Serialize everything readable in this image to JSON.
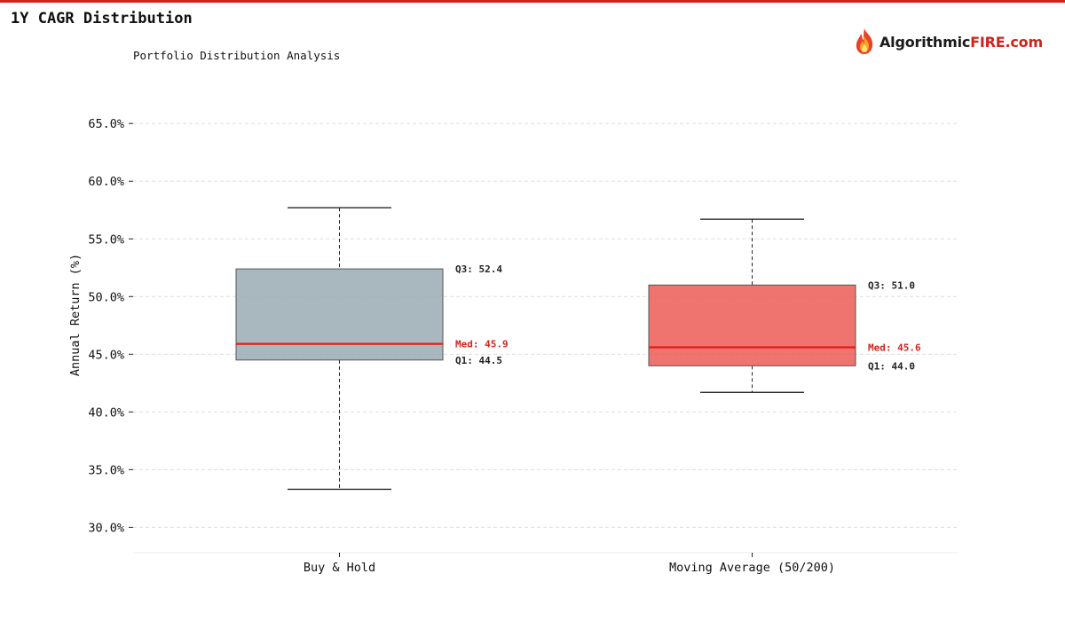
{
  "header": {
    "title": "1Y CAGR Distribution",
    "subtitle": "Portfolio Distribution Analysis"
  },
  "logo": {
    "icon": "flame-icon",
    "text_main": "Algorithmic",
    "text_accent": "FIRE.com"
  },
  "colors": {
    "accent": "#d0231c",
    "median": "#dd1f1a",
    "grid": "#dddddd",
    "whisker": "#222222"
  },
  "chart_data": {
    "type": "box",
    "title": "1Y CAGR Distribution",
    "subtitle": "Portfolio Distribution Analysis",
    "ylabel": "Annual Return (%)",
    "xlabel": "",
    "ylim": [
      27.8,
      68.4
    ],
    "yticks": [
      30,
      35,
      40,
      45,
      50,
      55,
      60,
      65
    ],
    "ytick_format": "0.0%",
    "grid": true,
    "grid_axis": "y",
    "series": [
      {
        "name": "Buy & Hold",
        "min": 33.3,
        "q1": 44.5,
        "median": 45.9,
        "q3": 52.4,
        "max": 57.7,
        "color": "#9aaab3",
        "labels": {
          "q3": "Q3: 52.4",
          "median": "Med: 45.9",
          "q1": "Q1: 44.5"
        }
      },
      {
        "name": "Moving Average (50/200)",
        "min": 41.7,
        "q1": 44.0,
        "median": 45.6,
        "q3": 51.0,
        "max": 56.7,
        "color": "#ec5b55",
        "labels": {
          "q3": "Q3: 51.0",
          "median": "Med: 45.6",
          "q1": "Q1: 44.0"
        }
      }
    ]
  }
}
